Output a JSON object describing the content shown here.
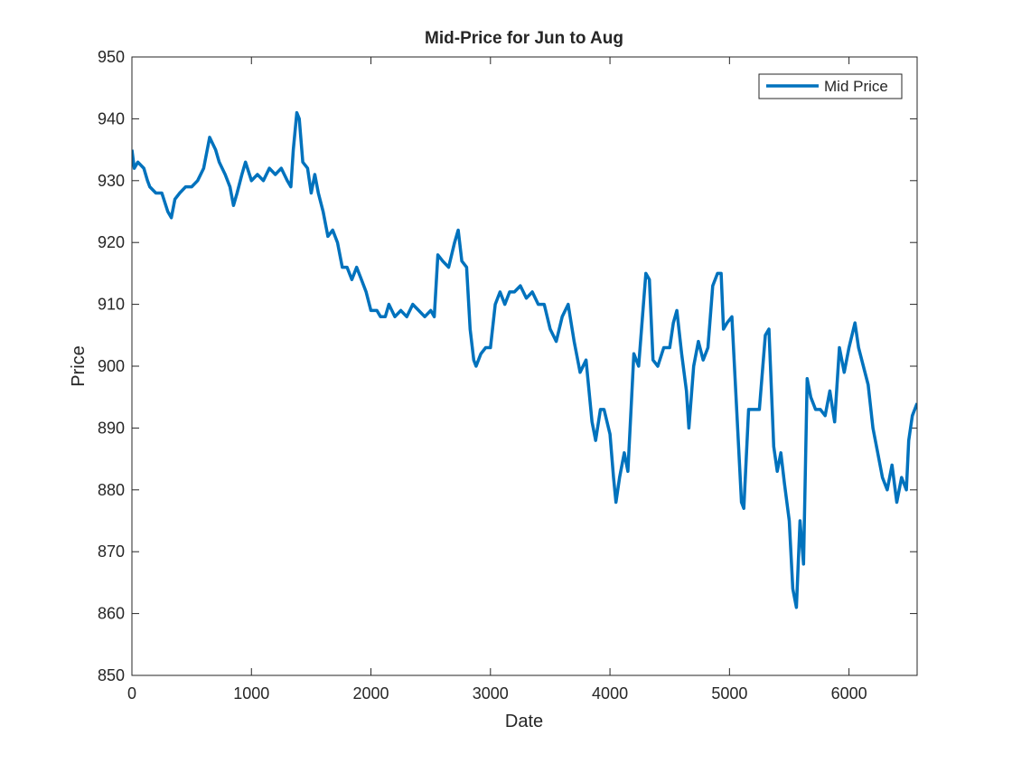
{
  "chart_data": {
    "type": "line",
    "title": "Mid-Price for Jun to Aug",
    "x_label": "Date",
    "y_label": "Price",
    "xlim": [
      0,
      6570
    ],
    "xticks": [
      0,
      1000,
      2000,
      3000,
      4000,
      5000,
      6000
    ],
    "ylim": [
      850,
      950
    ],
    "yticks": [
      850,
      860,
      870,
      880,
      890,
      900,
      910,
      920,
      930,
      940,
      950
    ],
    "legend": "upper right",
    "x": [
      0,
      20,
      50,
      100,
      130,
      150,
      200,
      250,
      300,
      330,
      360,
      400,
      450,
      500,
      550,
      600,
      650,
      700,
      730,
      780,
      820,
      850,
      880,
      920,
      950,
      1000,
      1050,
      1100,
      1150,
      1200,
      1250,
      1300,
      1330,
      1350,
      1380,
      1400,
      1430,
      1470,
      1500,
      1530,
      1560,
      1600,
      1640,
      1680,
      1720,
      1760,
      1800,
      1840,
      1880,
      1920,
      1960,
      2000,
      2050,
      2080,
      2120,
      2150,
      2200,
      2250,
      2300,
      2350,
      2400,
      2450,
      2500,
      2530,
      2560,
      2600,
      2650,
      2700,
      2730,
      2760,
      2800,
      2830,
      2860,
      2880,
      2920,
      2960,
      3000,
      3040,
      3080,
      3120,
      3160,
      3200,
      3250,
      3300,
      3350,
      3400,
      3450,
      3500,
      3550,
      3600,
      3650,
      3700,
      3750,
      3800,
      3850,
      3880,
      3920,
      3950,
      4000,
      4030,
      4050,
      4080,
      4120,
      4150,
      4200,
      4240,
      4280,
      4300,
      4330,
      4360,
      4400,
      4450,
      4500,
      4530,
      4560,
      4600,
      4640,
      4660,
      4700,
      4740,
      4780,
      4820,
      4860,
      4900,
      4930,
      4950,
      4980,
      5020,
      5060,
      5100,
      5120,
      5160,
      5200,
      5250,
      5300,
      5330,
      5370,
      5400,
      5430,
      5460,
      5500,
      5530,
      5560,
      5590,
      5620,
      5650,
      5680,
      5720,
      5760,
      5800,
      5840,
      5880,
      5920,
      5960,
      6000,
      6050,
      6080,
      6120,
      6160,
      6200,
      6240,
      6280,
      6320,
      6360,
      6400,
      6440,
      6480,
      6500,
      6530,
      6570
    ],
    "series": [
      {
        "name": "Mid Price",
        "color": "#0072bd",
        "values": [
          935,
          932,
          933,
          932,
          930,
          929,
          928,
          928,
          925,
          924,
          927,
          928,
          929,
          929,
          930,
          932,
          937,
          935,
          933,
          931,
          929,
          926,
          928,
          931,
          933,
          930,
          931,
          930,
          932,
          931,
          932,
          930,
          929,
          935,
          941,
          940,
          933,
          932,
          928,
          931,
          928,
          925,
          921,
          922,
          920,
          916,
          916,
          914,
          916,
          914,
          912,
          909,
          909,
          908,
          908,
          910,
          908,
          909,
          908,
          910,
          909,
          908,
          909,
          908,
          918,
          917,
          916,
          920,
          922,
          917,
          916,
          906,
          901,
          900,
          902,
          903,
          903,
          910,
          912,
          910,
          912,
          912,
          913,
          911,
          912,
          910,
          910,
          906,
          904,
          908,
          910,
          904,
          899,
          901,
          891,
          888,
          893,
          893,
          889,
          882,
          878,
          882,
          886,
          883,
          902,
          900,
          910,
          915,
          914,
          901,
          900,
          903,
          903,
          907,
          909,
          902,
          896,
          890,
          900,
          904,
          901,
          903,
          913,
          915,
          915,
          906,
          907,
          908,
          893,
          878,
          877,
          893,
          893,
          893,
          905,
          906,
          887,
          883,
          886,
          881,
          875,
          864,
          861,
          875,
          868,
          898,
          895,
          893,
          893,
          892,
          896,
          891,
          903,
          899,
          903,
          907,
          903,
          900,
          897,
          890,
          886,
          882,
          880,
          884,
          878,
          882,
          880,
          888,
          892,
          894
        ]
      }
    ]
  }
}
